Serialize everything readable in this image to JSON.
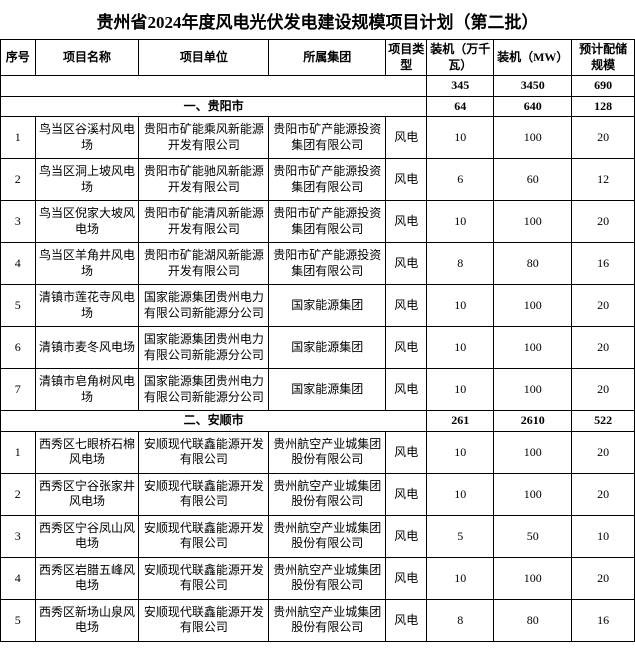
{
  "title": "贵州省2024年度风电光伏发电建设规模项目计划（第二批）",
  "headers": {
    "col1": "序号",
    "col2": "项目名称",
    "col3": "项目单位",
    "col4": "所属集团",
    "col5": "项目类型",
    "col6": "装机（万千瓦）",
    "col7": "装机（MW）",
    "col8": "预计配储规模"
  },
  "totals": {
    "cap1": "345",
    "cap2": "3450",
    "store": "690"
  },
  "sections": [
    {
      "label": "一、贵阳市",
      "subtotal": {
        "cap1": "64",
        "cap2": "640",
        "store": "128"
      },
      "rows": [
        {
          "idx": "1",
          "name": "鸟当区谷溪村风电场",
          "unit": "贵阳市矿能乘风新能源开发有限公司",
          "group": "贵阳市矿产能源投资集团有限公司",
          "type": "风电",
          "cap1": "10",
          "cap2": "100",
          "store": "20"
        },
        {
          "idx": "2",
          "name": "鸟当区洞上坡风电场",
          "unit": "贵阳市矿能驰风新能源开发有限公司",
          "group": "贵阳市矿产能源投资集团有限公司",
          "type": "风电",
          "cap1": "6",
          "cap2": "60",
          "store": "12"
        },
        {
          "idx": "3",
          "name": "鸟当区倪家大坡风电场",
          "unit": "贵阳市矿能清风新能源开发有限公司",
          "group": "贵阳市矿产能源投资集团有限公司",
          "type": "风电",
          "cap1": "10",
          "cap2": "100",
          "store": "20"
        },
        {
          "idx": "4",
          "name": "鸟当区羊角井风电场",
          "unit": "贵阳市矿能湖风新能源开发有限公司",
          "group": "贵阳市矿产能源投资集团有限公司",
          "type": "风电",
          "cap1": "8",
          "cap2": "80",
          "store": "16"
        },
        {
          "idx": "5",
          "name": "清镇市莲花寺风电场",
          "unit": "国家能源集团贵州电力有限公司新能源分公司",
          "group": "国家能源集团",
          "type": "风电",
          "cap1": "10",
          "cap2": "100",
          "store": "20"
        },
        {
          "idx": "6",
          "name": "清镇市麦冬风电场",
          "unit": "国家能源集团贵州电力有限公司新能源分公司",
          "group": "国家能源集团",
          "type": "风电",
          "cap1": "10",
          "cap2": "100",
          "store": "20"
        },
        {
          "idx": "7",
          "name": "清镇市皂角树风电场",
          "unit": "国家能源集团贵州电力有限公司新能源分公司",
          "group": "国家能源集团",
          "type": "风电",
          "cap1": "10",
          "cap2": "100",
          "store": "20"
        }
      ]
    },
    {
      "label": "二、安顺市",
      "subtotal": {
        "cap1": "261",
        "cap2": "2610",
        "store": "522"
      },
      "rows": [
        {
          "idx": "1",
          "name": "西秀区七眼桥石棉风电场",
          "unit": "安顺现代联鑫能源开发有限公司",
          "group": "贵州航空产业城集团股份有限公司",
          "type": "风电",
          "cap1": "10",
          "cap2": "100",
          "store": "20"
        },
        {
          "idx": "2",
          "name": "西秀区宁谷张家井风电场",
          "unit": "安顺现代联鑫能源开发有限公司",
          "group": "贵州航空产业城集团股份有限公司",
          "type": "风电",
          "cap1": "10",
          "cap2": "100",
          "store": "20"
        },
        {
          "idx": "3",
          "name": "西秀区宁谷凤山风电场",
          "unit": "安顺现代联鑫能源开发有限公司",
          "group": "贵州航空产业城集团股份有限公司",
          "type": "风电",
          "cap1": "5",
          "cap2": "50",
          "store": "10"
        },
        {
          "idx": "4",
          "name": "西秀区岩腊五峰风电场",
          "unit": "安顺现代联鑫能源开发有限公司",
          "group": "贵州航空产业城集团股份有限公司",
          "type": "风电",
          "cap1": "10",
          "cap2": "100",
          "store": "20"
        },
        {
          "idx": "5",
          "name": "西秀区新场山泉风电场",
          "unit": "安顺现代联鑫能源开发有限公司",
          "group": "贵州航空产业城集团股份有限公司",
          "type": "风电",
          "cap1": "8",
          "cap2": "80",
          "store": "16"
        }
      ]
    }
  ]
}
